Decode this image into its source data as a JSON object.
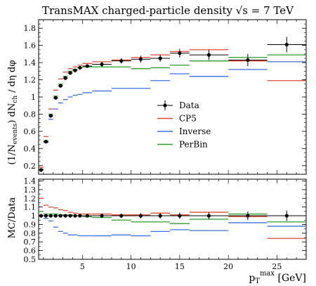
{
  "chart_data": [
    {
      "type": "line",
      "title": "TransMAX charged-particle density √s = 7 TeV",
      "ylabel": "(1/N_events) dN_ch / dη dφ",
      "xlabel": "",
      "xlim": [
        0.5,
        28
      ],
      "ylim": [
        0.1,
        1.9
      ],
      "yticks": [
        0.2,
        0.4,
        0.6,
        0.8,
        1.0,
        1.2,
        1.4,
        1.6,
        1.8
      ],
      "ytick_labels": [
        "0.2",
        "0.4",
        "0.6",
        "0.8",
        "1",
        "1.2",
        "1.4",
        "1.6",
        "1.8"
      ],
      "legend_position": "center-right",
      "bins": [
        [
          0.5,
          1.0
        ],
        [
          1.0,
          1.5
        ],
        [
          1.5,
          2.0
        ],
        [
          2.0,
          2.5
        ],
        [
          2.5,
          3.0
        ],
        [
          3.0,
          3.5
        ],
        [
          3.5,
          4.0
        ],
        [
          4.0,
          4.5
        ],
        [
          4.5,
          5.0
        ],
        [
          5.0,
          6.0
        ],
        [
          6.0,
          8.0
        ],
        [
          8.0,
          10.0
        ],
        [
          10.0,
          12.0
        ],
        [
          12.0,
          14.0
        ],
        [
          14.0,
          16.0
        ],
        [
          16.0,
          20.0
        ],
        [
          20.0,
          24.0
        ],
        [
          24.0,
          28.0
        ]
      ],
      "series": [
        {
          "name": "Data",
          "style": "points",
          "color": "#000000",
          "x": [
            0.75,
            1.25,
            1.75,
            2.25,
            2.75,
            3.25,
            3.75,
            4.25,
            4.75,
            5.5,
            7,
            9,
            11,
            13,
            15,
            18,
            22,
            26
          ],
          "values": [
            0.15,
            0.48,
            0.78,
            0.99,
            1.13,
            1.22,
            1.28,
            1.31,
            1.34,
            1.36,
            1.38,
            1.42,
            1.44,
            1.45,
            1.51,
            1.49,
            1.43,
            1.61
          ],
          "errors": [
            0.01,
            0.01,
            0.02,
            0.02,
            0.02,
            0.02,
            0.02,
            0.02,
            0.02,
            0.02,
            0.03,
            0.03,
            0.04,
            0.04,
            0.05,
            0.06,
            0.07,
            0.09
          ]
        },
        {
          "name": "CP5",
          "style": "step",
          "color": "#e34a2c",
          "values": [
            0.18,
            0.54,
            0.86,
            1.08,
            1.21,
            1.29,
            1.33,
            1.35,
            1.37,
            1.39,
            1.41,
            1.43,
            1.46,
            1.49,
            1.53,
            1.55,
            1.42,
            1.19
          ]
        },
        {
          "name": "Inverse",
          "style": "step",
          "color": "#3b70e0",
          "values": [
            0.15,
            0.47,
            0.74,
            0.86,
            0.93,
            0.97,
            1.0,
            1.02,
            1.03,
            1.05,
            1.07,
            1.1,
            1.1,
            1.19,
            1.27,
            1.24,
            1.32,
            1.41
          ]
        },
        {
          "name": "PerBin",
          "style": "step",
          "color": "#2a9d2a",
          "values": [
            0.16,
            0.49,
            0.8,
            1.01,
            1.15,
            1.24,
            1.3,
            1.32,
            1.34,
            1.35,
            1.35,
            1.35,
            1.33,
            1.34,
            1.37,
            1.42,
            1.46,
            1.49
          ]
        }
      ]
    },
    {
      "type": "line",
      "title": "",
      "ylabel": "MC/Data",
      "xlabel": "p_T^max [GeV]",
      "xlim": [
        0.5,
        28
      ],
      "ylim": [
        0.5,
        1.42
      ],
      "yticks": [
        0.5,
        0.6,
        0.7,
        0.8,
        0.9,
        1.0,
        1.1,
        1.2,
        1.3,
        1.4
      ],
      "ytick_labels": [
        "0.5",
        "0.6",
        "0.7",
        "0.8",
        "0.9",
        "1",
        "1.1",
        "1.2",
        "1.3",
        "1.4"
      ],
      "xticks": [
        5,
        10,
        15,
        20,
        25
      ],
      "xtick_labels": [
        "5",
        "10",
        "15",
        "20",
        "25"
      ],
      "series": [
        {
          "name": "Data",
          "style": "points",
          "color": "#000000",
          "x": [
            0.75,
            1.25,
            1.75,
            2.25,
            2.75,
            3.25,
            3.75,
            4.25,
            4.75,
            5.5,
            7,
            9,
            11,
            13,
            15,
            18,
            22,
            26
          ],
          "values": [
            1,
            1,
            1,
            1,
            1,
            1,
            1,
            1,
            1,
            1,
            1,
            1,
            1,
            1,
            1,
            1,
            1,
            1
          ],
          "errors": [
            0.02,
            0.02,
            0.02,
            0.02,
            0.02,
            0.02,
            0.02,
            0.02,
            0.02,
            0.02,
            0.025,
            0.025,
            0.03,
            0.03,
            0.035,
            0.04,
            0.05,
            0.06
          ]
        },
        {
          "name": "CP5",
          "style": "step",
          "color": "#e34a2c",
          "values": [
            1.2,
            1.12,
            1.1,
            1.09,
            1.07,
            1.06,
            1.04,
            1.03,
            1.02,
            1.02,
            1.02,
            1.01,
            1.01,
            1.03,
            1.01,
            1.04,
            0.99,
            0.74
          ]
        },
        {
          "name": "Inverse",
          "style": "step",
          "color": "#3b70e0",
          "values": [
            1.0,
            0.97,
            0.94,
            0.87,
            0.82,
            0.8,
            0.78,
            0.78,
            0.77,
            0.77,
            0.77,
            0.78,
            0.77,
            0.82,
            0.84,
            0.83,
            0.92,
            0.88
          ]
        },
        {
          "name": "PerBin",
          "style": "step",
          "color": "#2a9d2a",
          "values": [
            1.05,
            1.02,
            1.02,
            1.02,
            1.01,
            1.01,
            1.01,
            1.0,
            1.0,
            0.99,
            0.98,
            0.95,
            0.93,
            0.93,
            0.91,
            0.96,
            1.02,
            0.93
          ]
        }
      ]
    }
  ]
}
